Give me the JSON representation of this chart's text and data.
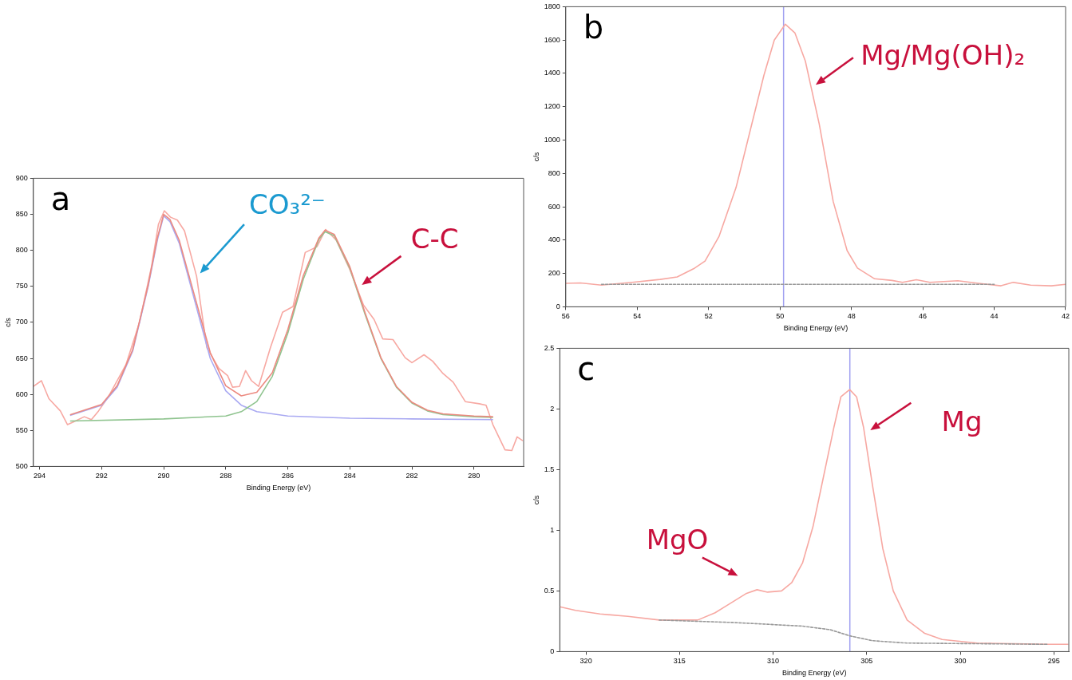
{
  "chart_data": [
    {
      "type": "line",
      "xlabel": "Binding Energy (eV)",
      "ylabel": "c/s",
      "xlim": [
        294.2,
        278.4
      ],
      "xticks": [
        294,
        292,
        290,
        288,
        286,
        284,
        282,
        280
      ],
      "ylim": [
        500,
        900
      ],
      "yticks": [
        500,
        550,
        600,
        650,
        700,
        750,
        800,
        850,
        900
      ],
      "grid": false,
      "legend": false,
      "series": [
        {
          "color": "#f7a8a2",
          "x": [
            294.2,
            293.94,
            293.7,
            293.33,
            293.1,
            292.9,
            292.56,
            292.33,
            292.1,
            291.78,
            291.22,
            290.78,
            290.39,
            290.17,
            289.98,
            289.78,
            289.56,
            289.33,
            288.94,
            288.61,
            288.22,
            287.94,
            287.78,
            287.56,
            287.36,
            287.17,
            286.94,
            286.56,
            286.17,
            285.83,
            285.44,
            285.06,
            284.78,
            284.44,
            284,
            283.56,
            283.22,
            282.94,
            282.61,
            282.22,
            282,
            281.61,
            281.33,
            281,
            280.67,
            280.28,
            279.83,
            279.61,
            279.39,
            279,
            278.78,
            278.61,
            278.44
          ],
          "values": [
            611,
            619,
            594,
            577,
            558,
            562,
            569,
            565,
            577,
            597,
            641,
            700,
            778,
            836,
            855,
            846,
            842,
            827,
            764,
            665,
            636,
            626,
            610,
            611,
            633,
            619,
            611,
            665,
            714,
            722,
            797,
            805,
            829,
            814,
            773,
            724,
            704,
            677,
            676,
            651,
            644,
            655,
            646,
            629,
            617,
            590,
            587,
            585,
            558,
            523,
            522,
            541,
            536
          ]
        },
        {
          "color": "#a9a9f2",
          "x": [
            293,
            292,
            291.5,
            291,
            290.5,
            290.2,
            290,
            289.8,
            289.5,
            289,
            288.5,
            288,
            287.5,
            287,
            286,
            284,
            282,
            279.4
          ],
          "values": [
            571,
            585,
            610,
            660,
            750,
            815,
            848,
            840,
            810,
            730,
            650,
            605,
            585,
            576,
            570,
            567,
            566,
            565
          ]
        },
        {
          "color": "#8fc48f",
          "x": [
            293,
            290,
            288,
            287.5,
            287,
            286.5,
            286,
            285.5,
            285,
            284.8,
            284.5,
            284,
            283.5,
            283,
            282.5,
            282,
            281.5,
            281,
            280,
            279.4
          ],
          "values": [
            563,
            566,
            570,
            576,
            590,
            625,
            685,
            760,
            815,
            826,
            820,
            775,
            710,
            650,
            610,
            588,
            577,
            572,
            569,
            568
          ]
        },
        {
          "color": "#ec8a80",
          "x": [
            293,
            292,
            291.5,
            291,
            290.5,
            290.2,
            290,
            289.8,
            289.5,
            289,
            288.5,
            288,
            287.5,
            287,
            286.5,
            286,
            285.5,
            285,
            284.8,
            284.5,
            284,
            283.5,
            283,
            282.5,
            282,
            281.5,
            281,
            280,
            279.4
          ],
          "values": [
            572,
            586,
            612,
            662,
            752,
            818,
            850,
            843,
            814,
            736,
            658,
            612,
            598,
            603,
            630,
            690,
            765,
            817,
            828,
            822,
            777,
            712,
            651,
            611,
            589,
            578,
            573,
            570,
            569
          ]
        }
      ],
      "annotations": [
        "a",
        "CO₃²⁻",
        "C-C"
      ]
    },
    {
      "type": "line",
      "xlabel": "Binding Energy (eV)",
      "ylabel": "c/s",
      "xlim": [
        56,
        42
      ],
      "xticks": [
        56,
        54,
        52,
        50,
        48,
        46,
        44,
        42
      ],
      "ylim": [
        0,
        1800
      ],
      "yticks": [
        0,
        200,
        400,
        600,
        800,
        1000,
        1200,
        1400,
        1600,
        1800
      ],
      "grid": false,
      "legend": false,
      "series": [
        {
          "color": "#f7a8a2",
          "x": [
            56,
            55.59,
            55,
            54.14,
            53.36,
            52.88,
            52.39,
            52.1,
            51.71,
            51.23,
            50.84,
            50.45,
            50.16,
            49.85,
            49.58,
            49.29,
            48.9,
            48.51,
            48.12,
            47.83,
            47.35,
            46.86,
            46.57,
            46.18,
            45.8,
            45.02,
            44.44,
            43.81,
            43.47,
            42.98,
            42.4,
            42
          ],
          "values": [
            141,
            143,
            130,
            147,
            164,
            179,
            232,
            274,
            421,
            716,
            1053,
            1389,
            1600,
            1695,
            1642,
            1474,
            1095,
            632,
            337,
            232,
            168,
            158,
            147,
            162,
            147,
            156,
            141,
            126,
            147,
            130,
            126,
            135
          ]
        },
        {
          "color": "#999999",
          "line_style": "dashed",
          "x": [
            55,
            44
          ],
          "values": [
            135,
            135
          ]
        }
      ],
      "ref_lines": [
        {
          "axis": "x",
          "value": 49.9,
          "color": "#a0a0f0"
        }
      ],
      "annotations": [
        "b",
        "Mg/Mg(OH)₂"
      ]
    },
    {
      "type": "line",
      "xlabel": "Binding Energy (eV)",
      "ylabel": "c/s",
      "xlim": [
        321.4,
        294.2
      ],
      "xticks": [
        320,
        315,
        310,
        305,
        300,
        295
      ],
      "ylim": [
        0,
        2.5
      ],
      "yticks": [
        0,
        0.5,
        1,
        1.5,
        2,
        2.5
      ],
      "grid": false,
      "legend": false,
      "series": [
        {
          "color": "#f7a8a2",
          "x": [
            321.4,
            320.56,
            319.25,
            317.76,
            316.08,
            314.96,
            314.03,
            313.1,
            312.16,
            311.42,
            310.86,
            310.3,
            309.55,
            309,
            308.43,
            307.87,
            307.31,
            306.75,
            306.38,
            305.91,
            305.54,
            305.17,
            304.7,
            304.14,
            303.58,
            302.84,
            301.9,
            300.97,
            299.1,
            297.24,
            295.37,
            294.25
          ],
          "values": [
            0.37,
            0.34,
            0.31,
            0.29,
            0.26,
            0.26,
            0.26,
            0.32,
            0.41,
            0.48,
            0.51,
            0.49,
            0.5,
            0.57,
            0.73,
            1.03,
            1.44,
            1.85,
            2.1,
            2.16,
            2.1,
            1.85,
            1.38,
            0.85,
            0.5,
            0.26,
            0.15,
            0.1,
            0.07,
            0.065,
            0.06,
            0.06
          ]
        },
        {
          "color": "#999999",
          "line_style": "dashed",
          "x": [
            316.08,
            312.16,
            308.43,
            306.94,
            305.91,
            304.7,
            302.84,
            295.37
          ],
          "values": [
            0.26,
            0.24,
            0.21,
            0.18,
            0.13,
            0.09,
            0.07,
            0.06
          ]
        }
      ],
      "ref_lines": [
        {
          "axis": "x",
          "value": 305.9,
          "color": "#a0a0f0"
        }
      ],
      "annotations": [
        "c",
        "Mg",
        "MgO"
      ]
    }
  ]
}
